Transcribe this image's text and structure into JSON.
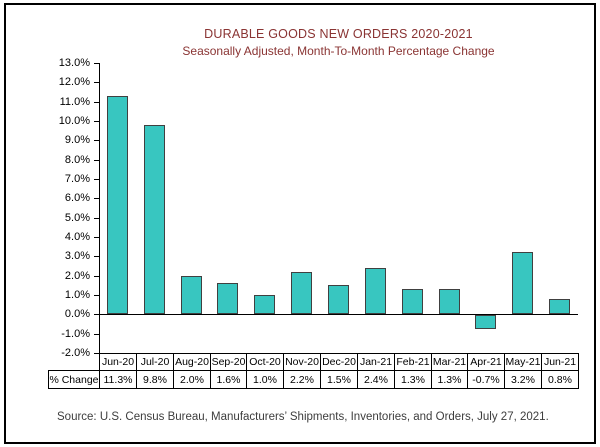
{
  "chart_data": {
    "type": "bar",
    "title": "DURABLE GOODS NEW ORDERS 2020-2021",
    "subtitle": "Seasonally Adjusted,  Month-To-Month Percentage Change",
    "categories": [
      "Jun-20",
      "Jul-20",
      "Aug-20",
      "Sep-20",
      "Oct-20",
      "Nov-20",
      "Dec-20",
      "Jan-21",
      "Feb-21",
      "Mar-21",
      "Apr-21",
      "May-21",
      "Jun-21"
    ],
    "series": [
      {
        "name": "% Change",
        "values": [
          11.3,
          9.8,
          2.0,
          1.6,
          1.0,
          2.2,
          1.5,
          2.4,
          1.3,
          1.3,
          -0.7,
          3.2,
          0.8
        ]
      }
    ],
    "series_label": "% Change",
    "table_values": [
      "11.3%",
      "9.8%",
      "2.0%",
      "1.6%",
      "1.0%",
      "2.2%",
      "1.5%",
      "2.4%",
      "1.3%",
      "1.3%",
      "-0.7%",
      "3.2%",
      "0.8%"
    ],
    "xlabel": "",
    "ylabel": "",
    "ylim": [
      -2,
      13
    ],
    "y_tick_step": 1,
    "y_tick_labels": [
      "13.0%",
      "12.0%",
      "11.0%",
      "10.0%",
      "9.0%",
      "8.0%",
      "7.0%",
      "6.0%",
      "5.0%",
      "4.0%",
      "3.0%",
      "2.0%",
      "1.0%",
      "0.0%",
      "-1.0%",
      "-2.0%"
    ],
    "grid": false,
    "legend_position": "none",
    "data_table_attached": true
  },
  "footer": {
    "source": "Source: U.S. Census Bureau, Manufacturers’ Shipments, Inventories, and Orders, July 27, 2021."
  },
  "colors": {
    "background": "#FFFFFF",
    "frame_border": "#000000",
    "title_text": "#8A3433",
    "bar_fill": "#38C6C0",
    "bar_border": "#404040",
    "axis_text": "#000000",
    "table_border": "#000000",
    "source_text": "#3D3D3D"
  }
}
